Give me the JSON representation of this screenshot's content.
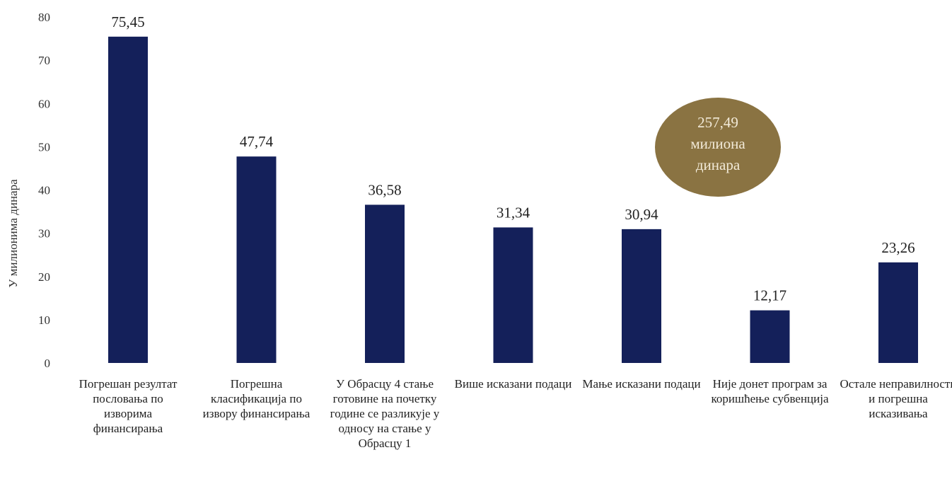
{
  "chart_data": {
    "type": "bar",
    "ylabel": "У милионима динара",
    "ylim": [
      0,
      80
    ],
    "yticks": [
      0,
      10,
      20,
      30,
      40,
      50,
      60,
      70,
      80
    ],
    "grid": false,
    "categories": [
      "Погрешан резултат пословања по изворима финансирања",
      "Погрешна класификација по извору финансирања",
      "У Обрасцу 4 стање готовине на почетку године се разликује у односу на стање у Обрасцу 1",
      "Више исказани подаци",
      "Мање исказани подаци",
      "Није донет програм за коришћење субвенција",
      "Остале неправилности и погрешна исказивања"
    ],
    "values": [
      75.45,
      47.74,
      36.58,
      31.34,
      30.94,
      12.17,
      23.26
    ],
    "value_labels": [
      "75,45",
      "47,74",
      "36,58",
      "31,34",
      "30,94",
      "12,17",
      "23,26"
    ],
    "bar_color": "#14205a",
    "annotation": {
      "lines": [
        "257,49",
        "милиона",
        "динара"
      ],
      "color": "#8a7342"
    }
  }
}
